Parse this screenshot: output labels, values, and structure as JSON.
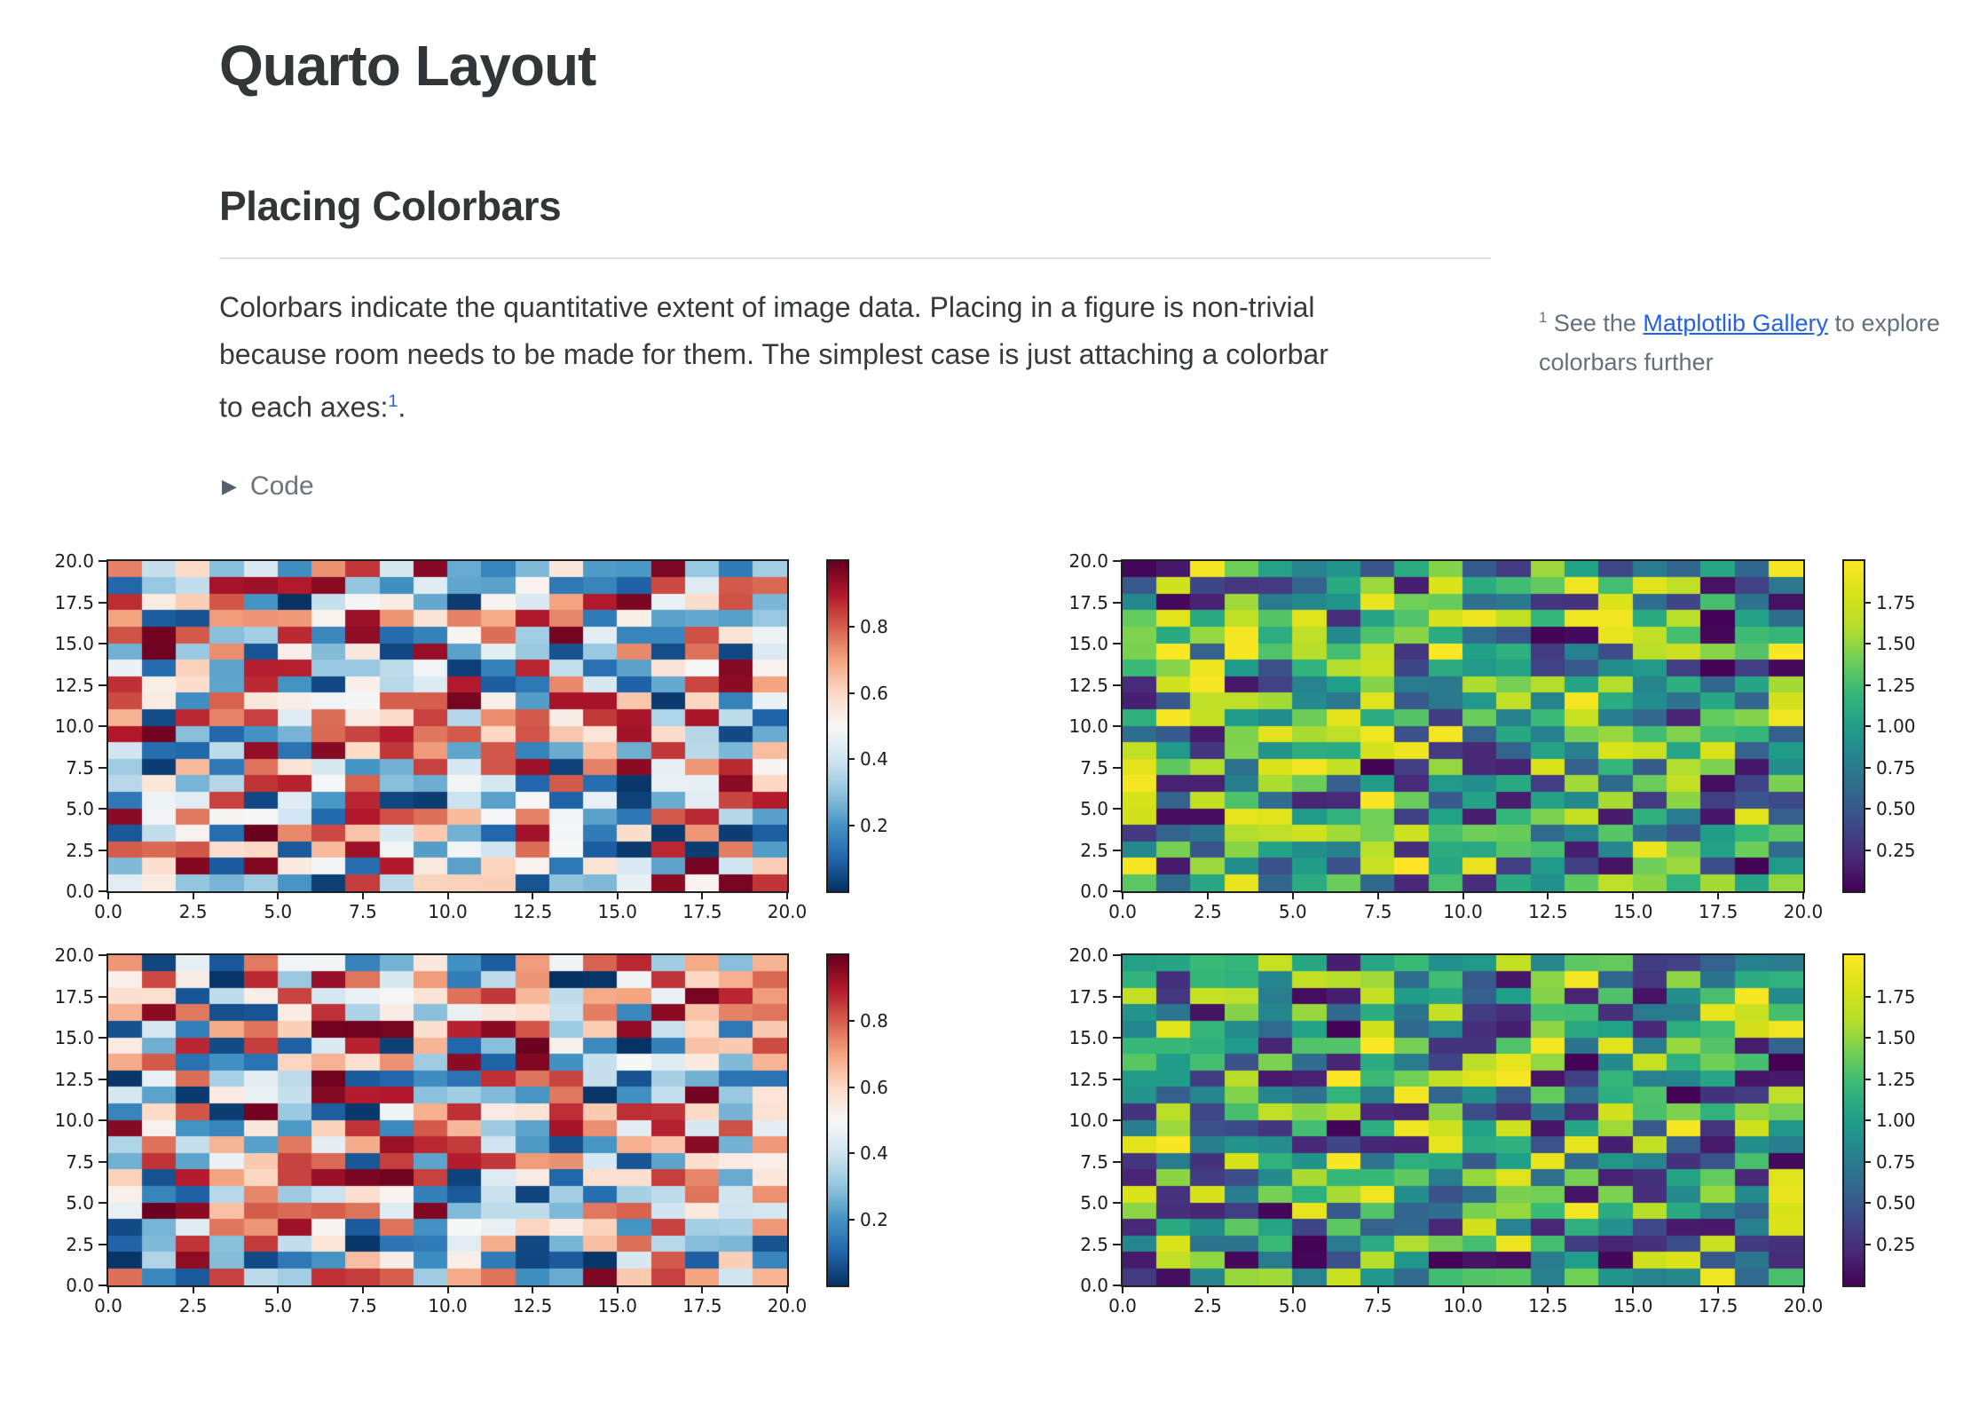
{
  "page": {
    "title": "Quarto Layout",
    "section": {
      "heading": "Placing Colorbars"
    },
    "paragraph": {
      "line1": "Colorbars indicate the quantitative extent of image data. Placing in a figure is non-trivial",
      "line2": "because room needs to be made for them. The simplest case is just attaching a colorbar",
      "line3": "to each axes:",
      "footnote_ref": "1",
      "end": "."
    },
    "sidenote": {
      "marker": "1",
      "before_link": " See the ",
      "link_text": "Matplotlib Gallery",
      "after_link": " to explore colorbars further"
    },
    "code_toggle": {
      "label": "Code",
      "icon": "triangle-right"
    }
  },
  "colors": {
    "heading_text": "#333639",
    "body_text": "#373a3c",
    "muted_text": "#6c757d",
    "link_blue": "#2761e3",
    "divider": "#dee2e6",
    "axis_spine": "#1f1f1f",
    "tick_label": "#1c1c1c"
  },
  "chart_data": {
    "colormaps": {
      "RdBu_r": [
        [
          0,
          "#053061"
        ],
        [
          0.1,
          "#2166ac"
        ],
        [
          0.2,
          "#4393c3"
        ],
        [
          0.3,
          "#92c5de"
        ],
        [
          0.4,
          "#d1e5f0"
        ],
        [
          0.5,
          "#f7f7f7"
        ],
        [
          0.6,
          "#fddbc7"
        ],
        [
          0.7,
          "#f4a582"
        ],
        [
          0.8,
          "#d6604d"
        ],
        [
          0.9,
          "#b2182b"
        ],
        [
          1,
          "#67001f"
        ]
      ],
      "viridis": [
        [
          0,
          "#440154"
        ],
        [
          0.1,
          "#482878"
        ],
        [
          0.2,
          "#3e4989"
        ],
        [
          0.3,
          "#31688e"
        ],
        [
          0.4,
          "#26828e"
        ],
        [
          0.5,
          "#1f9e89"
        ],
        [
          0.6,
          "#35b779"
        ],
        [
          0.7,
          "#6ece58"
        ],
        [
          0.8,
          "#b5de2b"
        ],
        [
          0.9,
          "#d8e219"
        ],
        [
          1,
          "#fde725"
        ]
      ]
    },
    "plots": [
      {
        "type": "heatmap",
        "position": "top-left",
        "colormap": "RdBu_r",
        "grid": [
          20,
          20
        ],
        "x_range": [
          0,
          20
        ],
        "y_range": [
          0,
          20
        ],
        "value_range": [
          0,
          1
        ],
        "seed": 20,
        "x_tick_labels": [
          "0.0",
          "2.5",
          "5.0",
          "7.5",
          "10.0",
          "12.5",
          "15.0",
          "17.5",
          "20.0"
        ],
        "y_tick_labels": [
          "20.0",
          "17.5",
          "15.0",
          "12.5",
          "10.0",
          "7.5",
          "5.0",
          "2.5",
          "0.0"
        ],
        "colorbar_tick_values": [
          0.2,
          0.4,
          0.6,
          0.8
        ],
        "colorbar_tick_labels": [
          "0.2",
          "0.4",
          "0.6",
          "0.8"
        ]
      },
      {
        "type": "heatmap",
        "position": "top-right",
        "colormap": "viridis",
        "grid": [
          20,
          20
        ],
        "x_range": [
          0,
          20
        ],
        "y_range": [
          0,
          20
        ],
        "value_range": [
          0,
          2
        ],
        "seed": 7,
        "x_tick_labels": [
          "0.0",
          "2.5",
          "5.0",
          "7.5",
          "10.0",
          "12.5",
          "15.0",
          "17.5",
          "20.0"
        ],
        "y_tick_labels": [
          "20.0",
          "17.5",
          "15.0",
          "12.5",
          "10.0",
          "7.5",
          "5.0",
          "2.5",
          "0.0"
        ],
        "colorbar_tick_values": [
          0.25,
          0.5,
          0.75,
          1.0,
          1.25,
          1.5,
          1.75
        ],
        "colorbar_tick_labels": [
          "0.25",
          "0.50",
          "0.75",
          "1.00",
          "1.25",
          "1.50",
          "1.75"
        ]
      },
      {
        "type": "heatmap",
        "position": "bottom-left",
        "colormap": "RdBu_r",
        "grid": [
          20,
          20
        ],
        "x_range": [
          0,
          20
        ],
        "y_range": [
          0,
          20
        ],
        "value_range": [
          0,
          1
        ],
        "seed": 3,
        "x_tick_labels": [
          "0.0",
          "2.5",
          "5.0",
          "7.5",
          "10.0",
          "12.5",
          "15.0",
          "17.5",
          "20.0"
        ],
        "y_tick_labels": [
          "20.0",
          "17.5",
          "15.0",
          "12.5",
          "10.0",
          "7.5",
          "5.0",
          "2.5",
          "0.0"
        ],
        "colorbar_tick_values": [
          0.2,
          0.4,
          0.6,
          0.8
        ],
        "colorbar_tick_labels": [
          "0.2",
          "0.4",
          "0.6",
          "0.8"
        ]
      },
      {
        "type": "heatmap",
        "position": "bottom-right",
        "colormap": "viridis",
        "grid": [
          20,
          20
        ],
        "x_range": [
          0,
          20
        ],
        "y_range": [
          0,
          20
        ],
        "value_range": [
          0,
          2
        ],
        "seed": 11,
        "x_tick_labels": [
          "0.0",
          "2.5",
          "5.0",
          "7.5",
          "10.0",
          "12.5",
          "15.0",
          "17.5",
          "20.0"
        ],
        "y_tick_labels": [
          "20.0",
          "17.5",
          "15.0",
          "12.5",
          "10.0",
          "7.5",
          "5.0",
          "2.5",
          "0.0"
        ],
        "colorbar_tick_values": [
          0.25,
          0.5,
          0.75,
          1.0,
          1.25,
          1.5,
          1.75
        ],
        "colorbar_tick_labels": [
          "0.25",
          "0.50",
          "0.75",
          "1.00",
          "1.25",
          "1.50",
          "1.75"
        ]
      }
    ]
  }
}
